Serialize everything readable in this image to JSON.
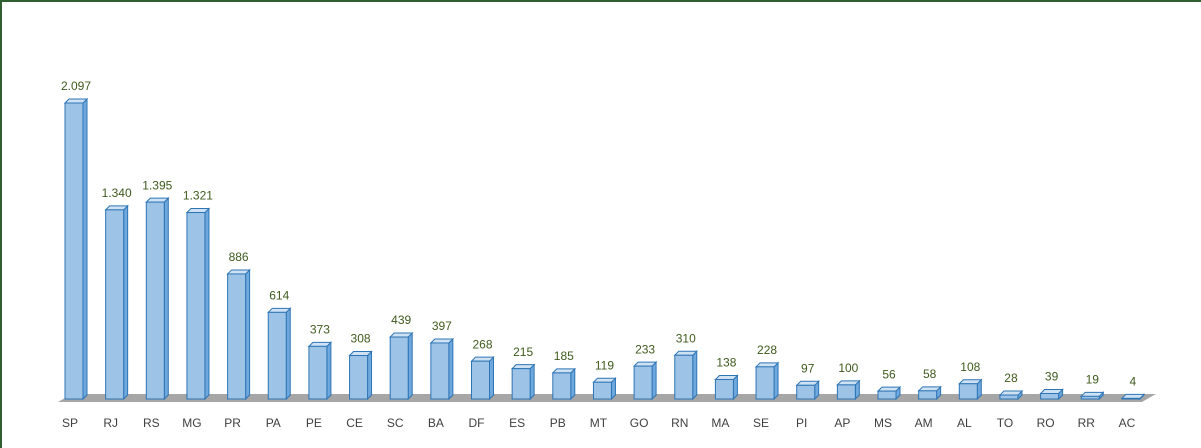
{
  "chart_data": {
    "type": "bar3d",
    "categories": [
      "SP",
      "RJ",
      "RS",
      "MG",
      "PR",
      "PA",
      "PE",
      "CE",
      "SC",
      "BA",
      "DF",
      "ES",
      "PB",
      "MT",
      "GO",
      "RN",
      "MA",
      "SE",
      "PI",
      "AP",
      "MS",
      "AM",
      "AL",
      "TO",
      "RO",
      "RR",
      "AC"
    ],
    "values": [
      2097,
      1340,
      1395,
      1321,
      886,
      614,
      373,
      308,
      439,
      397,
      268,
      215,
      185,
      119,
      233,
      310,
      138,
      228,
      97,
      100,
      56,
      58,
      108,
      28,
      39,
      19,
      4
    ],
    "value_labels": [
      "2.097",
      "1.340",
      "1.395",
      "1.321",
      "886",
      "614",
      "373",
      "308",
      "439",
      "397",
      "268",
      "215",
      "185",
      "119",
      "233",
      "310",
      "138",
      "228",
      "97",
      "100",
      "56",
      "58",
      "108",
      "28",
      "39",
      "19",
      "4"
    ],
    "color": "#9dc3e6"
  }
}
